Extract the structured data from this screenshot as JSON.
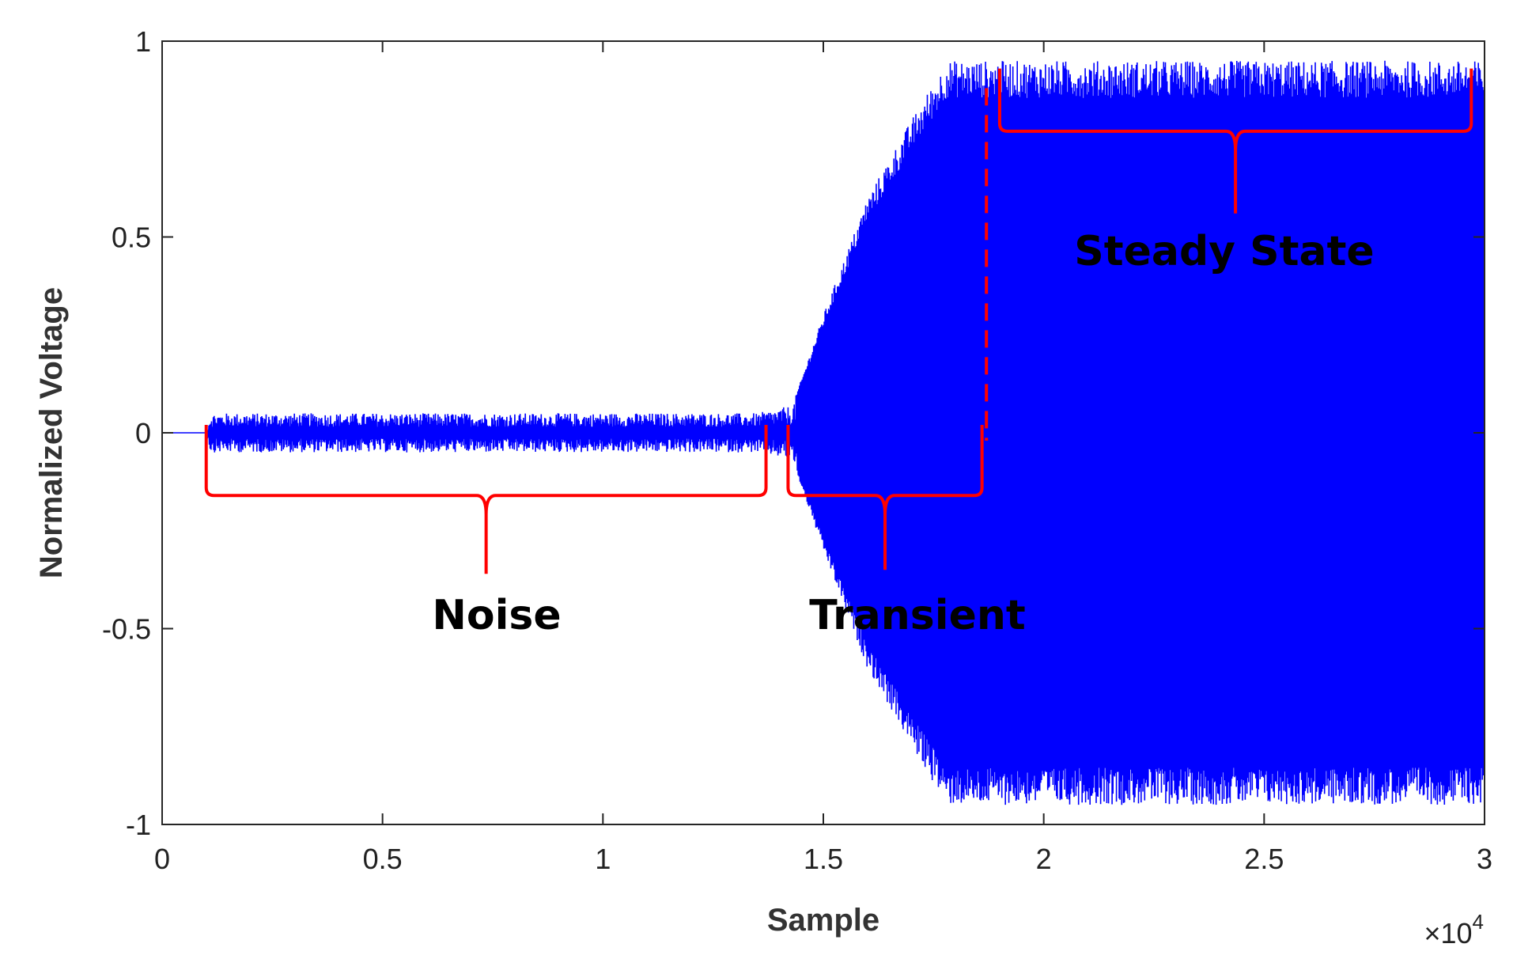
{
  "chart_data": {
    "type": "line",
    "title": "",
    "xlabel": "Sample",
    "ylabel": "Normalized Voltage",
    "xlim": [
      0,
      30000
    ],
    "ylim": [
      -1,
      1
    ],
    "x_multiplier_label": "×10",
    "x_multiplier_exponent": "4",
    "xticks": [
      0,
      5000,
      10000,
      15000,
      20000,
      25000,
      30000
    ],
    "xtick_labels": [
      "0",
      "0.5",
      "1",
      "1.5",
      "2",
      "2.5",
      "3"
    ],
    "yticks": [
      1,
      0.5,
      0,
      -0.5,
      -1
    ],
    "ytick_labels": [
      "1",
      "0.5",
      "0",
      "-0.5",
      "-1"
    ],
    "grid": false,
    "series": [
      {
        "color": "#0000ff",
        "envelope": [
          {
            "x": 0,
            "amplitude": 0
          },
          {
            "x": 1000,
            "amplitude": 0
          },
          {
            "x": 1100,
            "amplitude": 0.05
          },
          {
            "x": 13500,
            "amplitude": 0.05
          },
          {
            "x": 14300,
            "amplitude": 0.07
          },
          {
            "x": 15000,
            "amplitude": 0.3
          },
          {
            "x": 16000,
            "amplitude": 0.6
          },
          {
            "x": 17000,
            "amplitude": 0.8
          },
          {
            "x": 17800,
            "amplitude": 0.95
          },
          {
            "x": 30000,
            "amplitude": 0.95
          }
        ]
      }
    ],
    "annotations": [
      {
        "text": "Noise",
        "region": [
          1000,
          13700
        ],
        "color": "#ff0000"
      },
      {
        "text": "Transient",
        "region": [
          14200,
          18600
        ],
        "color": "#ff0000"
      },
      {
        "text": "Steady State",
        "region": [
          19000,
          29700
        ],
        "color": "#ff0000"
      }
    ],
    "boundary_line_x": 18700
  }
}
